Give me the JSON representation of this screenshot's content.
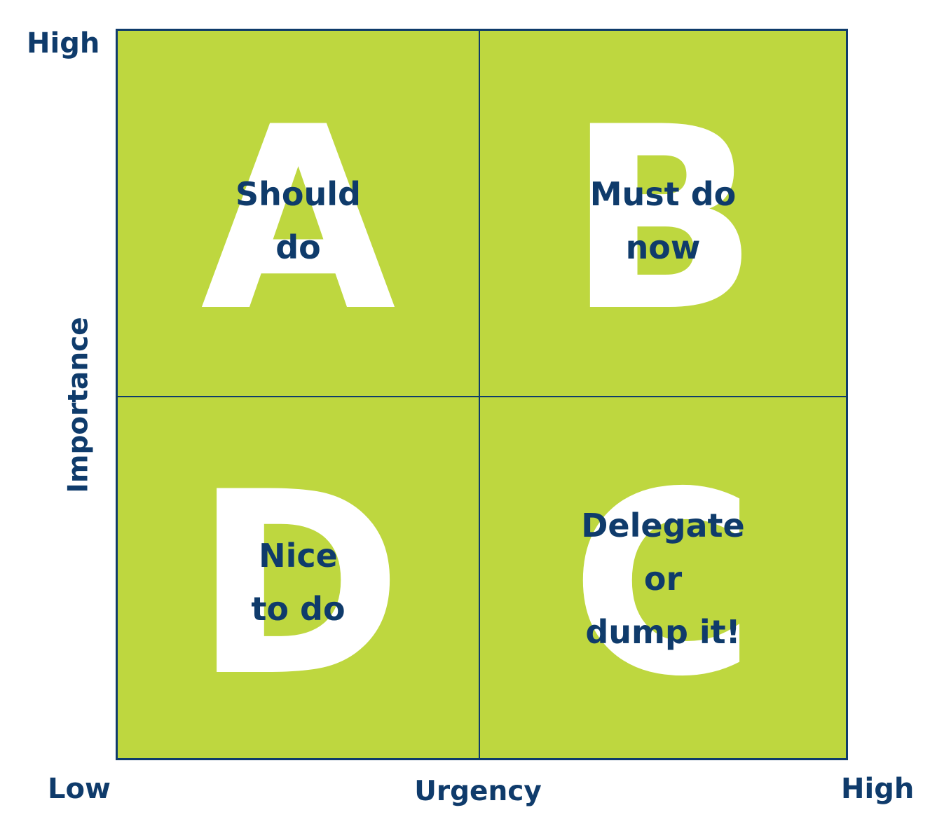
{
  "axes": {
    "y_title": "Importance",
    "y_high": "High",
    "x_title": "Urgency",
    "x_low": "Low",
    "x_high": "High"
  },
  "quadrants": {
    "a": {
      "letter": "A",
      "lines": [
        "Should",
        "do"
      ]
    },
    "b": {
      "letter": "B",
      "lines": [
        "Must do",
        "now"
      ]
    },
    "d": {
      "letter": "D",
      "lines": [
        "Nice",
        "to do"
      ]
    },
    "c": {
      "letter": "C",
      "lines": [
        "Delegate",
        "or",
        "dump it!"
      ]
    }
  },
  "colors": {
    "fill": "#bed73f",
    "ink": "#0f3b6b",
    "letter": "#ffffff"
  }
}
